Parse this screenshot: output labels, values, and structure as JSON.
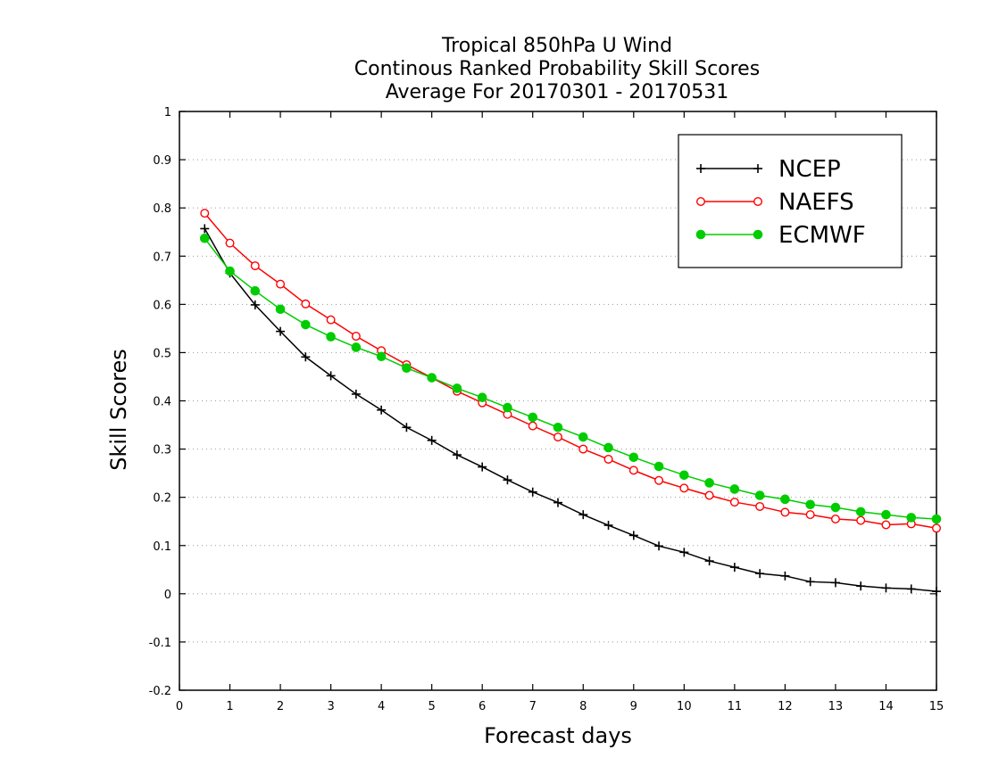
{
  "chart_data": {
    "type": "line",
    "title": [
      "Tropical 850hPa U Wind",
      "Continous Ranked Probability Skill Scores",
      "Average For 20170301 - 20170531"
    ],
    "xlabel": "Forecast days",
    "ylabel": "Skill Scores",
    "xlim": [
      0,
      15
    ],
    "ylim": [
      -0.2,
      1
    ],
    "xticks": [
      0,
      1,
      2,
      3,
      4,
      5,
      6,
      7,
      8,
      9,
      10,
      11,
      12,
      13,
      14,
      15
    ],
    "xtick_labels": [
      "0",
      "1",
      "2",
      "3",
      "4",
      "5",
      "6",
      "7",
      "8",
      "9",
      "10",
      "11",
      "12",
      "13",
      "14",
      "15"
    ],
    "yticks": [
      -0.2,
      -0.1,
      0,
      0.1,
      0.2,
      0.3,
      0.4,
      0.5,
      0.6,
      0.7,
      0.8,
      0.9,
      1
    ],
    "ytick_labels": [
      "-0.2",
      "-0.1",
      "0",
      "0.1",
      "0.2",
      "0.3",
      "0.4",
      "0.5",
      "0.6",
      "0.7",
      "0.8",
      "0.9",
      "1"
    ],
    "grid": "horizontal dotted",
    "legend_position": "top-right",
    "x": [
      0.5,
      1,
      1.5,
      2,
      2.5,
      3,
      3.5,
      4,
      4.5,
      5,
      5.5,
      6,
      6.5,
      7,
      7.5,
      8,
      8.5,
      9,
      9.5,
      10,
      10.5,
      11,
      11.5,
      12,
      12.5,
      13,
      13.5,
      14,
      14.5,
      15
    ],
    "series": [
      {
        "name": "NCEP",
        "color": "#000000",
        "marker": "plus",
        "values": [
          0.757,
          0.665,
          0.599,
          0.544,
          0.491,
          0.452,
          0.414,
          0.381,
          0.345,
          0.318,
          0.288,
          0.263,
          0.236,
          0.211,
          0.189,
          0.164,
          0.142,
          0.121,
          0.099,
          0.086,
          0.068,
          0.055,
          0.042,
          0.037,
          0.025,
          0.023,
          0.016,
          0.012,
          0.01,
          0.005
        ]
      },
      {
        "name": "NAEFS",
        "color": "#ff0000",
        "marker": "open-circle",
        "values": [
          0.789,
          0.727,
          0.68,
          0.642,
          0.601,
          0.568,
          0.534,
          0.504,
          0.475,
          0.448,
          0.42,
          0.396,
          0.372,
          0.348,
          0.325,
          0.3,
          0.279,
          0.256,
          0.235,
          0.219,
          0.204,
          0.19,
          0.181,
          0.169,
          0.164,
          0.155,
          0.152,
          0.143,
          0.145,
          0.136
        ]
      },
      {
        "name": "ECMWF",
        "color": "#00cc00",
        "marker": "filled-circle",
        "values": [
          0.737,
          0.669,
          0.628,
          0.59,
          0.558,
          0.533,
          0.511,
          0.492,
          0.468,
          0.448,
          0.426,
          0.407,
          0.386,
          0.366,
          0.345,
          0.325,
          0.303,
          0.283,
          0.264,
          0.246,
          0.23,
          0.217,
          0.204,
          0.196,
          0.185,
          0.179,
          0.17,
          0.164,
          0.158,
          0.155
        ]
      }
    ]
  }
}
